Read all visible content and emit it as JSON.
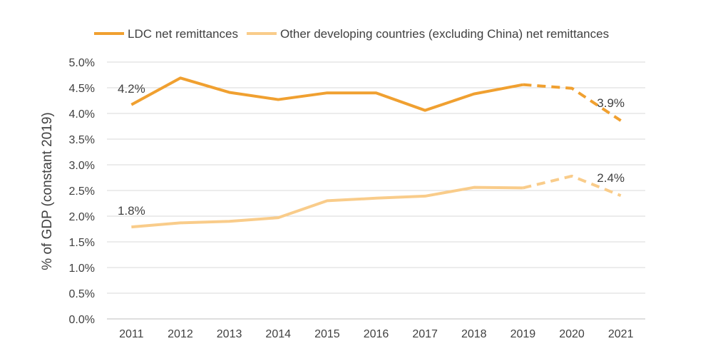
{
  "chart_data": {
    "type": "line",
    "title": "",
    "xlabel": "",
    "ylabel": "% of GDP (constant 2019)",
    "ylim": [
      0,
      5
    ],
    "y_ticks": [
      "0.0%",
      "0.5%",
      "1.0%",
      "1.5%",
      "2.0%",
      "2.5%",
      "3.0%",
      "3.5%",
      "4.0%",
      "4.5%",
      "5.0%"
    ],
    "y_tick_values": [
      0,
      0.5,
      1,
      1.5,
      2,
      2.5,
      3,
      3.5,
      4,
      4.5,
      5
    ],
    "categories": [
      "2011",
      "2012",
      "2013",
      "2014",
      "2015",
      "2016",
      "2017",
      "2018",
      "2019",
      "2020",
      "2021"
    ],
    "grid": true,
    "legend_position": "top",
    "projected_from": "2019",
    "series": [
      {
        "name": "LDC net remittances",
        "color": "#F0A030",
        "values": [
          4.17,
          4.69,
          4.41,
          4.27,
          4.4,
          4.4,
          4.06,
          4.38,
          4.56,
          4.49,
          3.86
        ],
        "labels": [
          {
            "category": "2011",
            "text": "4.2%"
          },
          {
            "category": "2021",
            "text": "3.9%"
          }
        ]
      },
      {
        "name": "Other developing countries (excluding China) net remittances",
        "color": "#F9CC8A",
        "values": [
          1.79,
          1.87,
          1.9,
          1.97,
          2.3,
          2.35,
          2.39,
          2.56,
          2.55,
          2.78,
          2.4
        ],
        "labels": [
          {
            "category": "2011",
            "text": "1.8%"
          },
          {
            "category": "2021",
            "text": "2.4%"
          }
        ]
      }
    ]
  }
}
